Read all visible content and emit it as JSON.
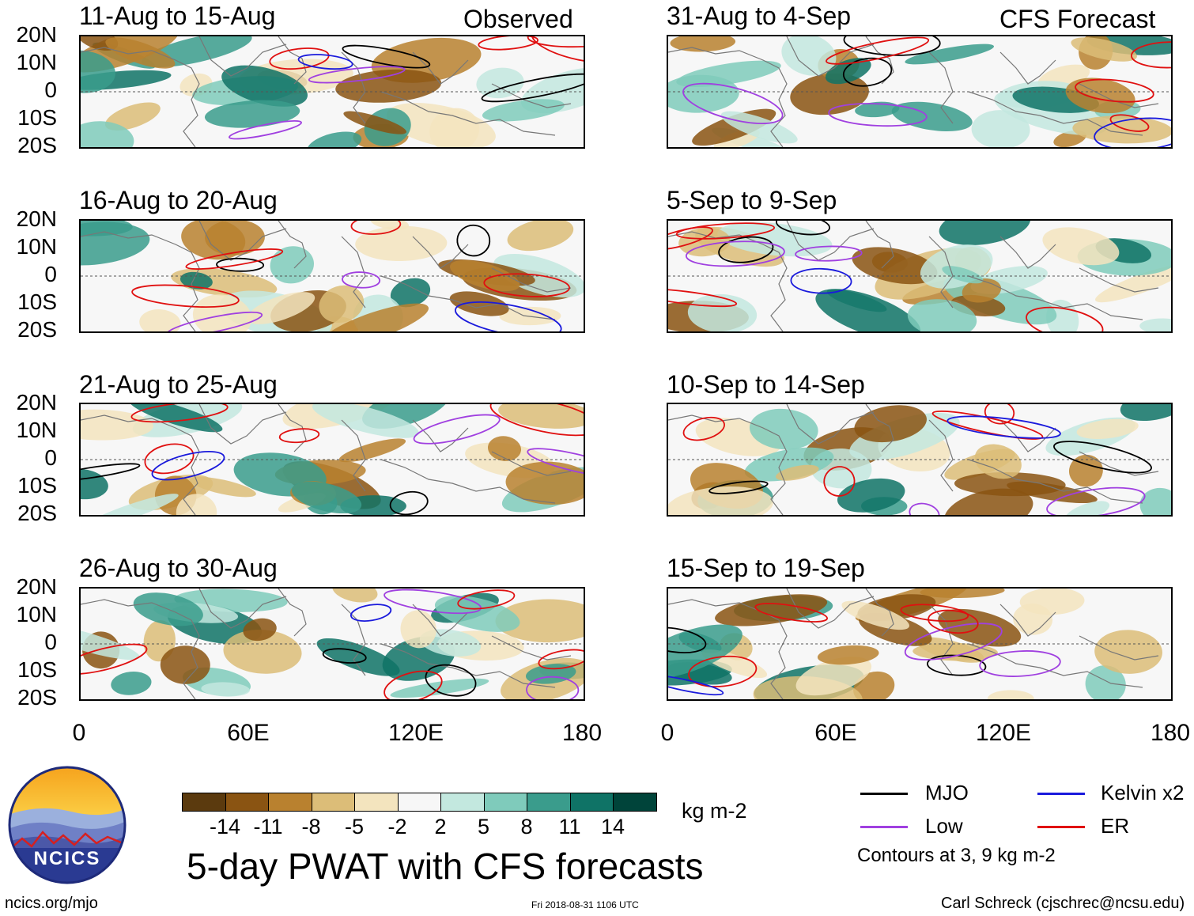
{
  "header": {
    "observed_label": "Observed",
    "forecast_label": "CFS Forecast"
  },
  "chart_data": {
    "type": "heatmap",
    "title": "5-day PWAT with CFS forecasts",
    "variable": "PWAT anomaly",
    "units": "kg m-2",
    "xlabel": "",
    "ylabel": "",
    "x_ticks": [
      "0",
      "60E",
      "120E",
      "180"
    ],
    "y_ticks": [
      "20N",
      "10N",
      "0",
      "10S",
      "20S"
    ],
    "xlim": [
      0,
      180
    ],
    "ylim": [
      -20,
      20
    ],
    "contour_note": "Contours at 3, 9 kg m-2",
    "observed_panels": [
      {
        "label": "11-Aug to 15-Aug",
        "source": "Observed"
      },
      {
        "label": "16-Aug to 20-Aug",
        "source": "Observed"
      },
      {
        "label": "21-Aug to 25-Aug",
        "source": "Observed"
      },
      {
        "label": "26-Aug to 30-Aug",
        "source": "Observed"
      }
    ],
    "forecast_panels": [
      {
        "label": "31-Aug to 4-Sep",
        "source": "CFS Forecast"
      },
      {
        "label": "5-Sep to 9-Sep",
        "source": "CFS Forecast"
      },
      {
        "label": "10-Sep to 14-Sep",
        "source": "CFS Forecast"
      },
      {
        "label": "15-Sep to 19-Sep",
        "source": "CFS Forecast"
      }
    ],
    "colorbar": {
      "levels": [
        "-14",
        "-11",
        "-8",
        "-5",
        "-2",
        "2",
        "5",
        "8",
        "11",
        "14"
      ],
      "colors": [
        "#5b3a0e",
        "#8a5412",
        "#b9812f",
        "#dcbd78",
        "#f3e4be",
        "#f7f7f7",
        "#c3e8df",
        "#7fcbbb",
        "#3a9c8c",
        "#0f7366",
        "#00443a"
      ]
    },
    "legend": [
      {
        "name": "MJO",
        "color": "#000000"
      },
      {
        "name": "Kelvin x2",
        "color": "#1a1adc"
      },
      {
        "name": "Low",
        "color": "#a040e0"
      },
      {
        "name": "ER",
        "color": "#e01010"
      }
    ]
  },
  "footer": {
    "logo_text": "NCICS",
    "url": "ncics.org/mjo",
    "timestamp": "Fri 2018-08-31 1106 UTC",
    "credit": "Carl Schreck (cjschrec@ncsu.edu)"
  }
}
